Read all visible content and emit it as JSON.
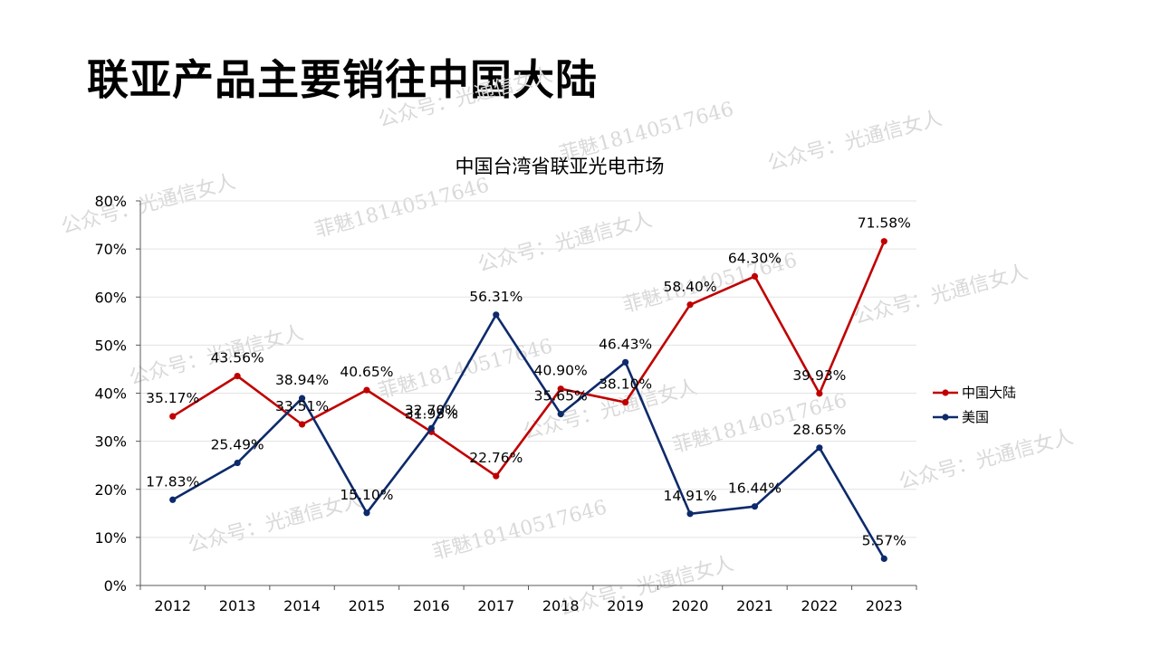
{
  "slide": {
    "title": "联亚产品主要销往中国大陆"
  },
  "watermarks": {
    "account": "公众号：光通信女人",
    "contact": "菲魅18140517646"
  },
  "chart_data": {
    "type": "line",
    "title": "中国台湾省联亚光电市场",
    "categories": [
      "2012",
      "2013",
      "2014",
      "2015",
      "2016",
      "2017",
      "2018",
      "2019",
      "2020",
      "2021",
      "2022",
      "2023"
    ],
    "ylim": [
      0,
      80
    ],
    "yticks": [
      0,
      10,
      20,
      30,
      40,
      50,
      60,
      70,
      80
    ],
    "ytick_labels": [
      "0%",
      "10%",
      "20%",
      "30%",
      "40%",
      "50%",
      "60%",
      "70%",
      "80%"
    ],
    "legend_position": "right",
    "series": [
      {
        "name": "中国大陆",
        "color": "#c00000",
        "values": [
          35.17,
          43.56,
          33.51,
          40.65,
          31.95,
          22.76,
          40.9,
          38.1,
          58.4,
          64.3,
          39.93,
          71.58
        ],
        "labels": [
          "35.17%",
          "43.56%",
          "33.51%",
          "40.65%",
          "31.95%",
          "22.76%",
          "40.90%",
          "38.10%",
          "58.40%",
          "64.30%",
          "39.93%",
          "71.58%"
        ]
      },
      {
        "name": "美国",
        "color": "#0d2a6b",
        "values": [
          17.83,
          25.49,
          38.94,
          15.1,
          32.7,
          56.31,
          35.65,
          46.43,
          14.91,
          16.44,
          28.65,
          5.57
        ],
        "labels": [
          "17.83%",
          "25.49%",
          "38.94%",
          "15.10%",
          "32.70%",
          "56.31%",
          "35.65%",
          "46.43%",
          "14.91%",
          "16.44%",
          "28.65%",
          "5.57%"
        ]
      }
    ]
  }
}
